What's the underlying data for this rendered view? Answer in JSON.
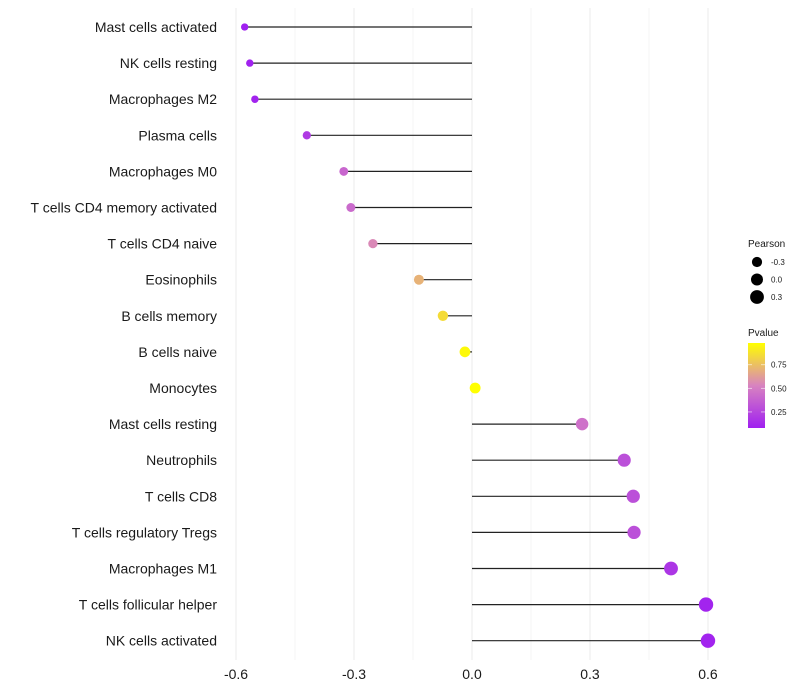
{
  "chart_data": {
    "type": "lollipop",
    "title": "",
    "xlabel": "",
    "ylabel": "",
    "xlim": [
      -0.6,
      0.6
    ],
    "xticks": [
      -0.6,
      -0.3,
      0.0,
      0.3,
      0.6
    ],
    "xtick_labels": [
      "-0.6",
      "-0.3",
      "0.0",
      "0.3",
      "0.6"
    ],
    "grid": true,
    "categories": [
      "Mast cells activated",
      "NK cells resting",
      "Macrophages M2",
      "Plasma cells",
      "Macrophages M0",
      "T cells CD4 memory activated",
      "T cells CD4 naive",
      "Eosinophils",
      "B cells memory",
      "B cells naive",
      "Monocytes",
      "Mast cells resting",
      "Neutrophils",
      "T cells CD8",
      "T cells regulatory  Tregs ",
      "Macrophages M1",
      "T cells follicular helper",
      "NK cells activated"
    ],
    "pearson": [
      -0.578,
      -0.565,
      -0.552,
      -0.42,
      -0.326,
      -0.308,
      -0.252,
      -0.135,
      -0.074,
      -0.018,
      0.008,
      0.28,
      0.387,
      0.41,
      0.412,
      0.506,
      0.595,
      0.6
    ],
    "pvalue": [
      0.08,
      0.09,
      0.1,
      0.2,
      0.4,
      0.42,
      0.55,
      0.7,
      0.85,
      0.96,
      0.98,
      0.45,
      0.3,
      0.3,
      0.3,
      0.18,
      0.1,
      0.1
    ],
    "legend": {
      "position": "right",
      "size_title": "Pearson",
      "size_entries": [
        {
          "label": "-0.3",
          "value": -0.3
        },
        {
          "label": "0.0",
          "value": 0.0
        },
        {
          "label": "0.3",
          "value": 0.3
        }
      ],
      "color_title": "Pvalue",
      "color_ticks": [
        {
          "label": "0.75",
          "value": 0.75
        },
        {
          "label": "0.50",
          "value": 0.5
        },
        {
          "label": "0.25",
          "value": 0.25
        }
      ],
      "color_range": [
        0.08,
        0.98
      ],
      "color_low": "#A020F0",
      "color_mid": "#D883C0",
      "color_high": "#FFFF00"
    }
  }
}
